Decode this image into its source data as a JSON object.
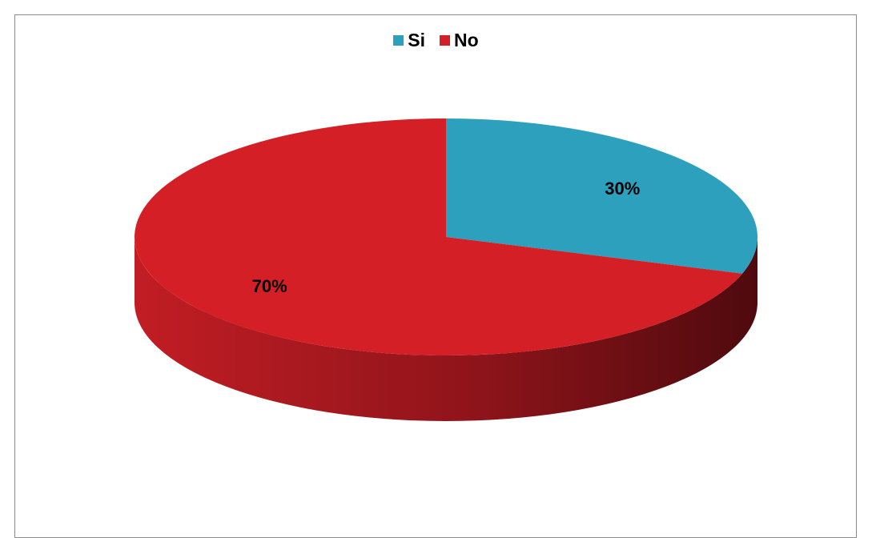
{
  "chart_data": {
    "type": "pie",
    "title": "",
    "legend_position": "top",
    "categories": [
      "Si",
      "No"
    ],
    "values": [
      30,
      70
    ],
    "data_labels": [
      "30%",
      "70%"
    ],
    "colors": [
      "#2da0be",
      "#d51f27"
    ],
    "depth_color": "#a11a1f",
    "three_d": true
  }
}
